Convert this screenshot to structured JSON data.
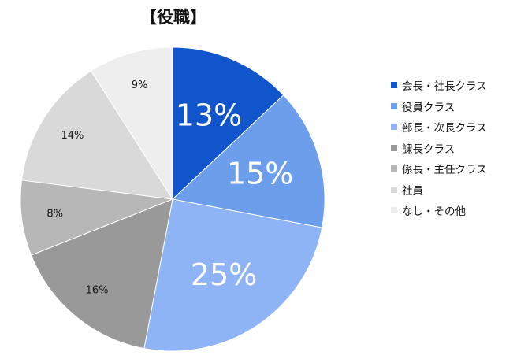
{
  "chart_data": {
    "type": "pie",
    "title": "【役職】",
    "categories": [
      "会長・社長クラス",
      "役員クラス",
      "部長・次長クラス",
      "課長クラス",
      "係長・主任クラス",
      "社員",
      "なし・その他"
    ],
    "values": [
      13,
      15,
      25,
      16,
      8,
      14,
      9
    ],
    "labels": [
      "13%",
      "15%",
      "25%",
      "16%",
      "8%",
      "14%",
      "9%"
    ],
    "colors": [
      "#1155cc",
      "#6d9eeb",
      "#8fb4f5",
      "#999999",
      "#b7b7b7",
      "#d9d9d9",
      "#eeeeee"
    ],
    "label_colors": [
      "#ffffff",
      "#ffffff",
      "#ffffff",
      "#1a1a1a",
      "#1a1a1a",
      "#1a1a1a",
      "#1a1a1a"
    ],
    "legend_position": "right",
    "start_angle": "12 o'clock",
    "direction": "clockwise"
  }
}
